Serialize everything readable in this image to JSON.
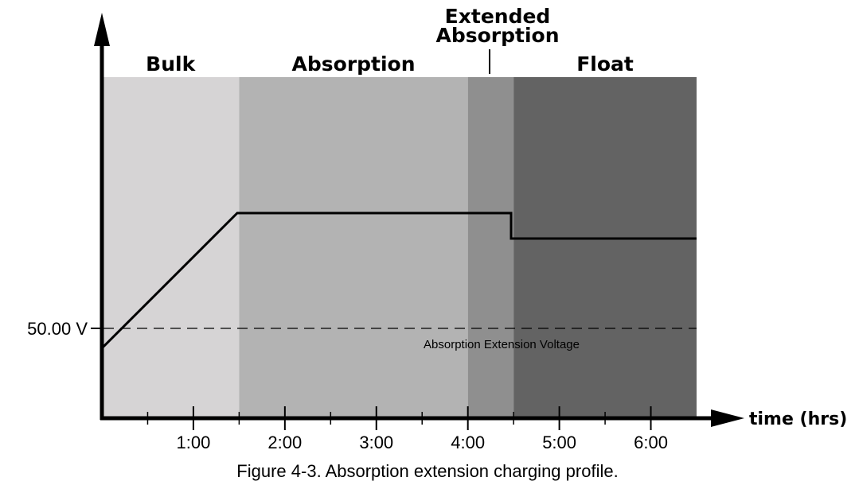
{
  "chart_data": {
    "type": "line",
    "title": "",
    "xlabel": "time (hrs)",
    "ylabel": "",
    "xlim": [
      0,
      6.5
    ],
    "x_ticks": [
      1,
      2,
      3,
      4,
      5,
      6
    ],
    "x_minor_ticks": [
      0.5,
      1.5,
      2.5,
      3.5,
      4.5,
      5.5
    ],
    "x_tick_labels": [
      "1:00",
      "2:00",
      "3:00",
      "4:00",
      "5:00",
      "6:00"
    ],
    "stages": [
      {
        "label": "Bulk",
        "start": 0,
        "end": 1.5,
        "color": "#d6d4d5"
      },
      {
        "label": "Absorption",
        "start": 1.5,
        "end": 4.0,
        "color": "#b3b3b3"
      },
      {
        "label_lines": [
          "Extended",
          "Absorption"
        ],
        "start": 4.0,
        "end": 4.5,
        "color": "#8f8f8f"
      },
      {
        "label": "Float",
        "start": 4.5,
        "end": 6.5,
        "color": "#636363"
      }
    ],
    "reference_line": {
      "value_label": "50.00 V",
      "label": "Absorption Extension Voltage"
    }
  },
  "caption": "Figure 4-3. Absorption extension charging profile."
}
